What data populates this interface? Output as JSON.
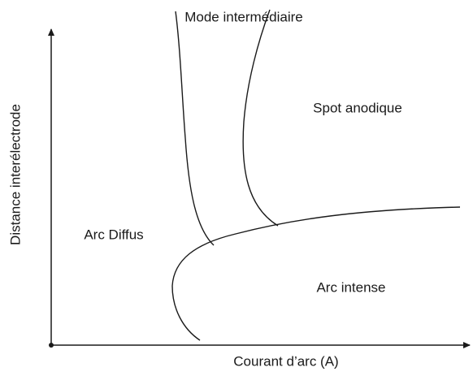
{
  "regions": [
    {
      "label": "Mode intermédiaire"
    },
    {
      "label": "Spot anodique"
    },
    {
      "label": "Arc Diffus"
    },
    {
      "label": "Arc intense"
    }
  ],
  "axes": {
    "y_label": "Distance interélectrode",
    "x_label": "Courant d’arc (A)"
  }
}
